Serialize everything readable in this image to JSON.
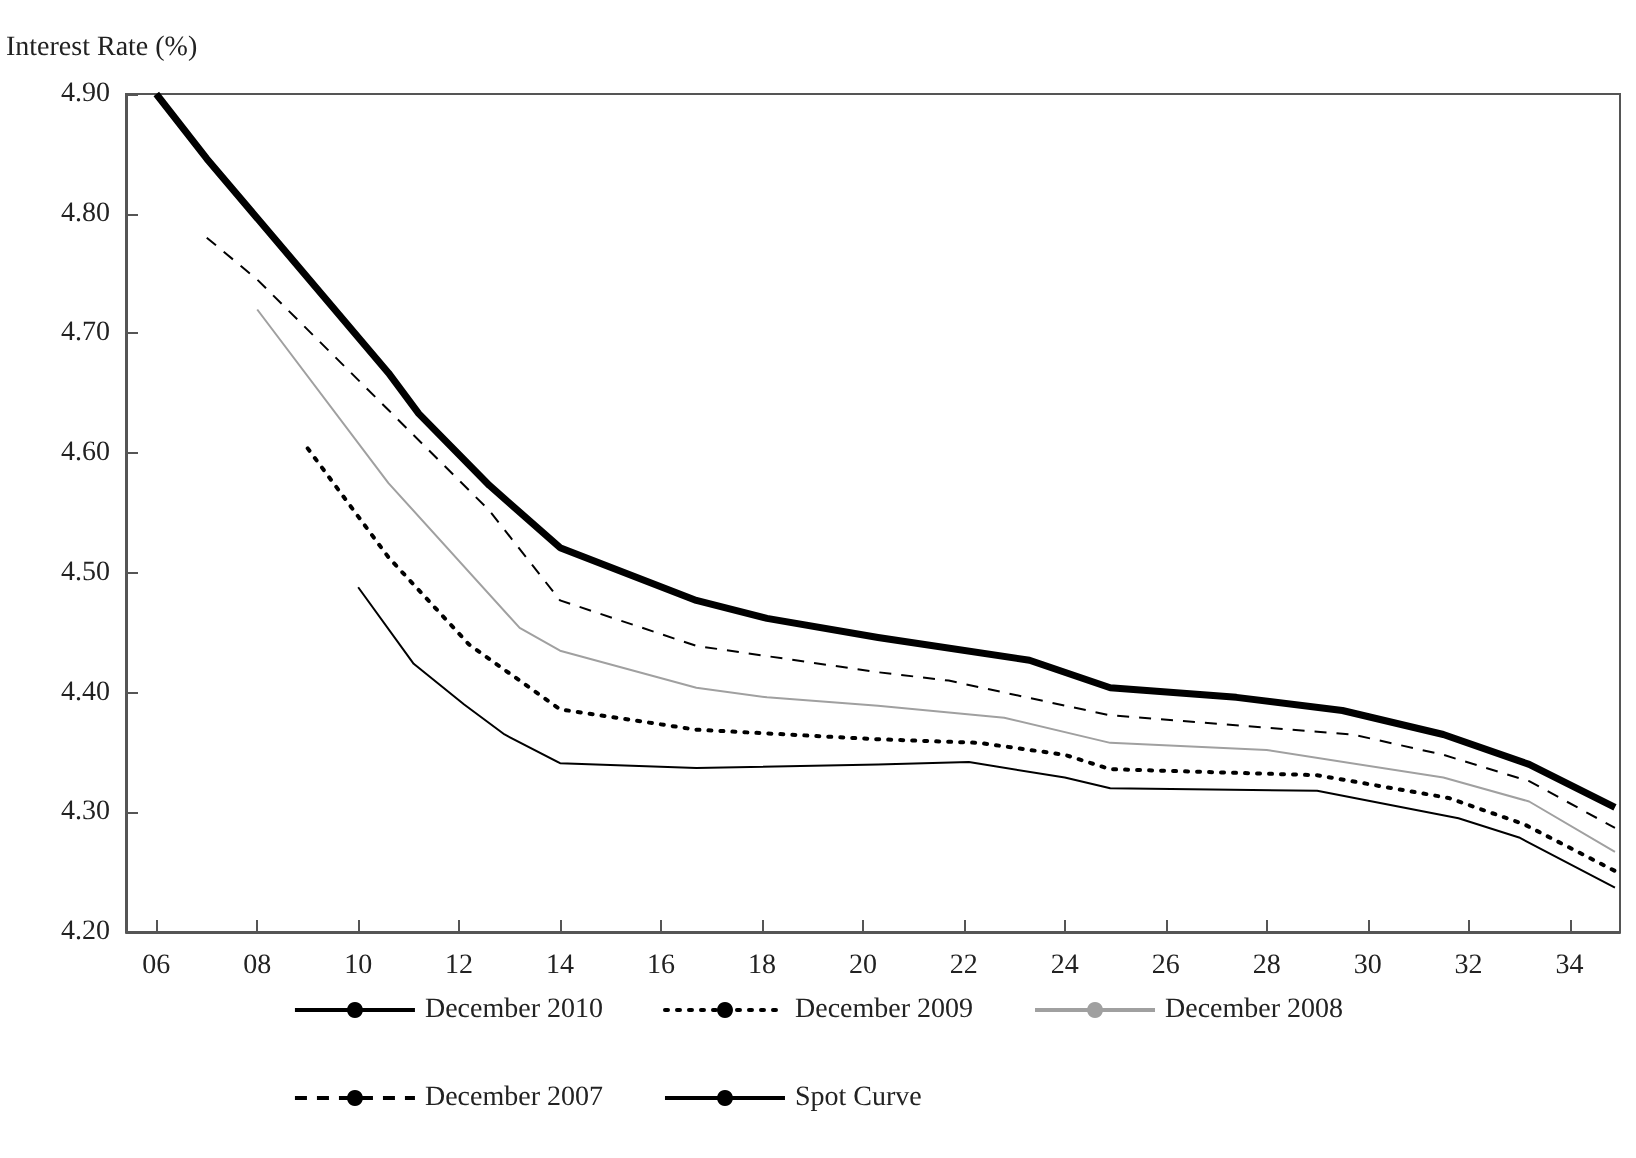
{
  "chart_data": {
    "type": "line",
    "ylabel": "Interest Rate (%)",
    "xlim": [
      5.4,
      35
    ],
    "xticks": [
      {
        "value": 6,
        "label": "06"
      },
      {
        "value": 8,
        "label": "08"
      },
      10,
      12,
      14,
      16,
      18,
      20,
      22,
      24,
      26,
      28,
      30,
      32,
      34
    ],
    "ylim": [
      4.2,
      4.9
    ],
    "yticks": [
      {
        "value": 4.2,
        "label": "4.20"
      },
      {
        "value": 4.3,
        "label": "4.30"
      },
      {
        "value": 4.4,
        "label": "4.40"
      },
      {
        "value": 4.5,
        "label": "4.50"
      },
      {
        "value": 4.6,
        "label": "4.60"
      },
      {
        "value": 4.7,
        "label": "4.70"
      },
      {
        "value": 4.8,
        "label": "4.80"
      },
      {
        "value": 4.9,
        "label": "4.90"
      }
    ],
    "grid": false,
    "legend": "bottom",
    "marker": "none",
    "series": [
      {
        "name": "December 2010",
        "color": "#000000",
        "line_style": "solid",
        "x": [
          10,
          11.1,
          12.1,
          12.9,
          14,
          16.7,
          20.3,
          22.1,
          24,
          24.9,
          29,
          31.8,
          33,
          34.9
        ],
        "values": [
          4.488,
          4.424,
          4.39,
          4.365,
          4.341,
          4.337,
          4.34,
          4.342,
          4.329,
          4.32,
          4.318,
          4.295,
          4.279,
          4.237
        ]
      },
      {
        "name": "December 2009",
        "color": "#000000",
        "line_style": "dotted",
        "x": [
          9,
          10.6,
          12.2,
          14,
          16.7,
          20.3,
          22.3,
          24,
          24.9,
          29,
          31.6,
          33.1,
          34.9
        ],
        "values": [
          4.604,
          4.513,
          4.44,
          4.386,
          4.369,
          4.361,
          4.358,
          4.348,
          4.336,
          4.331,
          4.312,
          4.29,
          4.251
        ]
      },
      {
        "name": "December 2008",
        "color": "#a0a0a0",
        "line_style": "solid",
        "x": [
          8,
          10.6,
          13.2,
          14,
          16.7,
          18.1,
          20.3,
          22.8,
          24.9,
          28,
          31.5,
          33.2,
          34.9
        ],
        "values": [
          4.72,
          4.575,
          4.454,
          4.435,
          4.404,
          4.396,
          4.389,
          4.379,
          4.358,
          4.352,
          4.329,
          4.309,
          4.267
        ]
      },
      {
        "name": "December 2007",
        "color": "#000000",
        "line_style": "dashed",
        "x": [
          7,
          8,
          10.6,
          12.6,
          14,
          16.7,
          20.3,
          21.7,
          24.9,
          29.7,
          31.5,
          33.2,
          34.9
        ],
        "values": [
          4.78,
          4.745,
          4.636,
          4.552,
          4.477,
          4.439,
          4.417,
          4.41,
          4.381,
          4.365,
          4.348,
          4.326,
          4.287
        ]
      },
      {
        "name": "Spot Curve",
        "color": "#000000",
        "line_style": "solid",
        "x": [
          6,
          7,
          10.6,
          11.2,
          12.6,
          14,
          16.7,
          18.1,
          20.3,
          23.3,
          24.9,
          27.4,
          29.5,
          31.5,
          33.2,
          34.9
        ],
        "values": [
          4.9,
          4.846,
          4.667,
          4.633,
          4.573,
          4.521,
          4.477,
          4.462,
          4.446,
          4.427,
          4.404,
          4.396,
          4.385,
          4.365,
          4.34,
          4.304
        ]
      }
    ]
  }
}
